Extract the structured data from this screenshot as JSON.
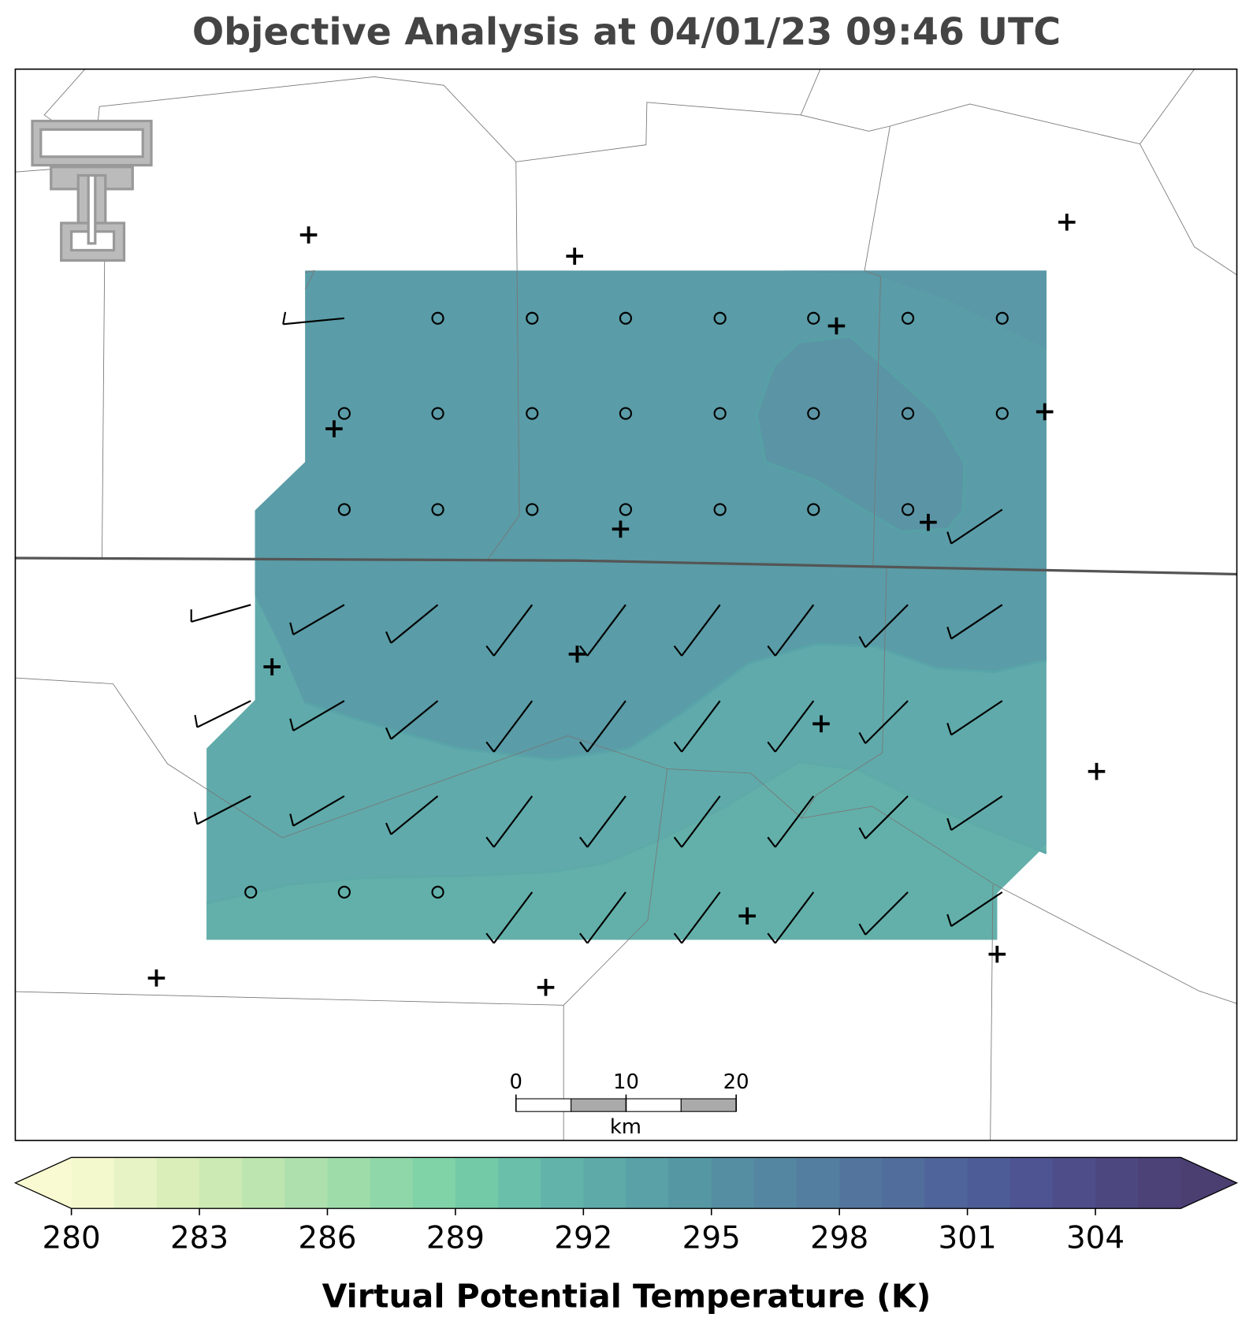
{
  "title": "Objective Analysis at 04/01/23 09:46 UTC",
  "colorbar": {
    "label": "Virtual Potential Temperature (K)",
    "lim": [
      280,
      306
    ],
    "ticks": [
      280,
      283,
      286,
      289,
      292,
      295,
      298,
      301,
      304
    ],
    "level_step": 1,
    "extend": "both",
    "color_stops": [
      [
        280,
        "#fafad2"
      ],
      [
        283,
        "#d4ecb5"
      ],
      [
        286,
        "#a6deab"
      ],
      [
        289,
        "#78cfa6"
      ],
      [
        291,
        "#64b9ab"
      ],
      [
        293,
        "#5aa5a8"
      ],
      [
        295,
        "#5592a3"
      ],
      [
        297,
        "#5582a0"
      ],
      [
        299,
        "#52719c"
      ],
      [
        301,
        "#4d6099"
      ],
      [
        303,
        "#4e4f8e"
      ],
      [
        306,
        "#4b3f72"
      ]
    ]
  },
  "scale_bar": {
    "ticks": [
      0,
      10,
      20
    ],
    "unit": "km"
  }
}
